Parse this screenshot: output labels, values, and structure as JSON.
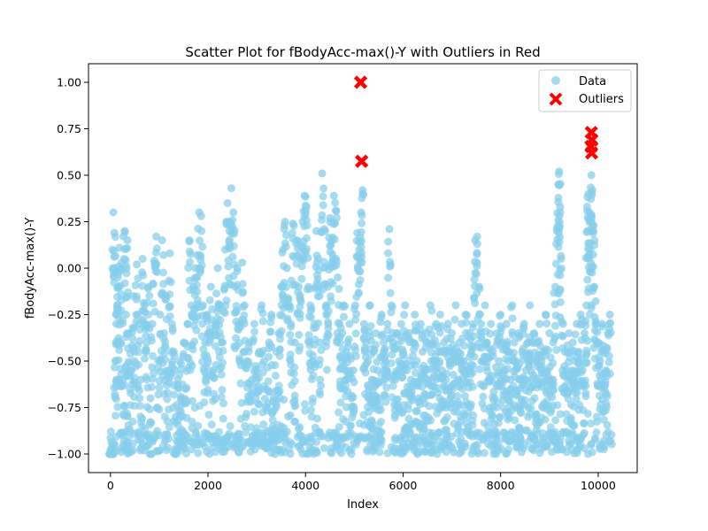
{
  "chart_data": {
    "type": "scatter",
    "title": "Scatter Plot for fBodyAcc-max()-Y with Outliers in Red",
    "xlabel": "Index",
    "ylabel": "fBodyAcc-max()-Y",
    "xlim": [
      -450,
      10800
    ],
    "ylim": [
      -1.1,
      1.1
    ],
    "x_ticks": [
      0,
      2000,
      4000,
      6000,
      8000,
      10000
    ],
    "x_tick_labels": [
      "0",
      "2000",
      "4000",
      "6000",
      "8000",
      "10000"
    ],
    "y_ticks": [
      -1.0,
      -0.75,
      -0.5,
      -0.25,
      0.0,
      0.25,
      0.5,
      0.75,
      1.0
    ],
    "y_tick_labels": [
      "−1.00",
      "−0.75",
      "−0.50",
      "−0.25",
      "0.00",
      "0.25",
      "0.50",
      "0.75",
      "1.00"
    ],
    "grid": false,
    "legend_position": "top-right",
    "series": [
      {
        "name": "Data",
        "color": "#87ceeb",
        "marker": "circle",
        "points": [
          [
            0,
            -0.98
          ],
          [
            20,
            -0.97
          ],
          [
            40,
            -0.95
          ],
          [
            60,
            0.3
          ],
          [
            80,
            0.19
          ],
          [
            100,
            -0.5
          ],
          [
            120,
            -0.3
          ],
          [
            140,
            -0.2
          ],
          [
            160,
            -0.1
          ],
          [
            180,
            0.11
          ],
          [
            200,
            -0.4
          ],
          [
            230,
            0.03
          ],
          [
            260,
            -0.6
          ],
          [
            290,
            0.2
          ],
          [
            320,
            -0.25
          ],
          [
            350,
            0.15
          ],
          [
            380,
            -0.35
          ],
          [
            420,
            -0.55
          ],
          [
            460,
            -0.15
          ],
          [
            500,
            -0.45
          ],
          [
            540,
            0.02
          ],
          [
            580,
            -0.3
          ],
          [
            620,
            -0.6
          ],
          [
            660,
            0.05
          ],
          [
            700,
            -0.2
          ],
          [
            740,
            -0.4
          ],
          [
            780,
            -0.1
          ],
          [
            820,
            -0.7
          ],
          [
            860,
            -0.3
          ],
          [
            900,
            0.04
          ],
          [
            940,
            0.17
          ],
          [
            980,
            -0.5
          ],
          [
            1020,
            -0.25
          ],
          [
            1060,
            0.15
          ],
          [
            1100,
            -0.35
          ],
          [
            1140,
            -0.15
          ],
          [
            1180,
            -0.55
          ],
          [
            1220,
            0.08
          ],
          [
            1260,
            -0.3
          ],
          [
            1300,
            -0.45
          ],
          [
            1340,
            -0.8
          ],
          [
            1380,
            -0.6
          ],
          [
            1420,
            -0.5
          ],
          [
            1460,
            -0.7
          ],
          [
            1500,
            -0.4
          ],
          [
            1540,
            -0.65
          ],
          [
            1580,
            -0.3
          ],
          [
            1620,
            0.15
          ],
          [
            1660,
            -0.2
          ],
          [
            1700,
            -0.1
          ],
          [
            1740,
            0.0
          ],
          [
            1780,
            0.07
          ],
          [
            1820,
            0.3
          ],
          [
            1860,
            0.28
          ],
          [
            1900,
            -0.2
          ],
          [
            1940,
            -0.4
          ],
          [
            1980,
            -0.25
          ],
          [
            2020,
            -0.35
          ],
          [
            2060,
            -0.1
          ],
          [
            2100,
            -0.55
          ],
          [
            2150,
            -0.3
          ],
          [
            2200,
            0.0
          ],
          [
            2250,
            -0.2
          ],
          [
            2300,
            -0.4
          ],
          [
            2350,
            0.1
          ],
          [
            2400,
            0.35
          ],
          [
            2440,
            0.2
          ],
          [
            2480,
            0.43
          ],
          [
            2520,
            0.3
          ],
          [
            2560,
            -0.1
          ],
          [
            2600,
            0.0
          ],
          [
            2650,
            -0.3
          ],
          [
            2700,
            0.03
          ],
          [
            2750,
            -0.2
          ],
          [
            2800,
            -0.5
          ],
          [
            2850,
            -0.4
          ],
          [
            2900,
            -0.6
          ],
          [
            2950,
            -0.3
          ],
          [
            3000,
            -0.55
          ],
          [
            3050,
            -0.45
          ],
          [
            3100,
            -0.2
          ],
          [
            3150,
            -0.5
          ],
          [
            3200,
            -0.65
          ],
          [
            3250,
            -0.4
          ],
          [
            3300,
            -0.25
          ],
          [
            3350,
            -0.7
          ],
          [
            3400,
            -0.45
          ],
          [
            3450,
            -0.35
          ],
          [
            3500,
            -0.1
          ],
          [
            3540,
            0.1
          ],
          [
            3580,
            0.25
          ],
          [
            3620,
            0.0
          ],
          [
            3660,
            -0.2
          ],
          [
            3700,
            -0.3
          ],
          [
            3740,
            0.24
          ],
          [
            3780,
            -0.4
          ],
          [
            3820,
            0.15
          ],
          [
            3860,
            -0.1
          ],
          [
            3900,
            0.05
          ],
          [
            3940,
            0.25
          ],
          [
            3980,
            0.39
          ],
          [
            4020,
            0.33
          ],
          [
            4060,
            -0.1
          ],
          [
            4100,
            -0.2
          ],
          [
            4140,
            -0.5
          ],
          [
            4180,
            -0.3
          ],
          [
            4220,
            0.2
          ],
          [
            4260,
            0.05
          ],
          [
            4300,
            -0.4
          ],
          [
            4340,
            0.51
          ],
          [
            4380,
            0.21
          ],
          [
            4420,
            -0.2
          ],
          [
            4460,
            -0.1
          ],
          [
            4500,
            0.27
          ],
          [
            4540,
            0.15
          ],
          [
            4580,
            0.39
          ],
          [
            4620,
            0.31
          ],
          [
            4660,
            -0.05
          ],
          [
            4700,
            -0.3
          ],
          [
            4740,
            -0.5
          ],
          [
            4780,
            -0.2
          ],
          [
            4820,
            -0.6
          ],
          [
            4860,
            -0.4
          ],
          [
            4900,
            -0.3
          ],
          [
            4940,
            -0.7
          ],
          [
            4980,
            -0.55
          ],
          [
            5020,
            -0.2
          ],
          [
            5060,
            0.19
          ],
          [
            5100,
            0.14
          ],
          [
            5140,
            0.3
          ],
          [
            5170,
            0.42
          ],
          [
            5200,
            -0.3
          ],
          [
            5240,
            -0.4
          ],
          [
            5280,
            -0.5
          ],
          [
            5320,
            -0.2
          ],
          [
            5360,
            -0.6
          ],
          [
            5400,
            -0.45
          ],
          [
            5440,
            -0.35
          ],
          [
            5480,
            -0.55
          ],
          [
            5520,
            -0.7
          ],
          [
            5560,
            -0.25
          ],
          [
            5600,
            -0.4
          ],
          [
            5640,
            -0.5
          ],
          [
            5680,
            -0.3
          ],
          [
            5720,
            0.21
          ],
          [
            5760,
            -0.2
          ],
          [
            5800,
            -0.4
          ],
          [
            5840,
            -0.6
          ],
          [
            5880,
            -0.35
          ],
          [
            5920,
            -0.5
          ],
          [
            5960,
            -0.3
          ],
          [
            6000,
            -0.45
          ],
          [
            6040,
            -0.2
          ],
          [
            6080,
            -0.55
          ],
          [
            6120,
            -0.35
          ],
          [
            6160,
            -0.6
          ],
          [
            6200,
            -0.4
          ],
          [
            6240,
            -0.25
          ],
          [
            6280,
            -0.5
          ],
          [
            6320,
            -0.7
          ],
          [
            6360,
            -0.3
          ],
          [
            6400,
            -0.45
          ],
          [
            6440,
            -0.55
          ],
          [
            6480,
            -0.35
          ],
          [
            6520,
            -0.6
          ],
          [
            6560,
            -0.2
          ],
          [
            6600,
            -0.4
          ],
          [
            6640,
            -0.5
          ],
          [
            6680,
            -0.3
          ],
          [
            6720,
            -0.45
          ],
          [
            6760,
            -0.25
          ],
          [
            6800,
            -0.55
          ],
          [
            6840,
            -0.4
          ],
          [
            6880,
            -0.6
          ],
          [
            6920,
            -0.3
          ],
          [
            6960,
            -0.5
          ],
          [
            7000,
            -0.35
          ],
          [
            7040,
            -0.45
          ],
          [
            7080,
            -0.2
          ],
          [
            7120,
            -0.6
          ],
          [
            7160,
            -0.4
          ],
          [
            7200,
            -0.3
          ],
          [
            7240,
            -0.5
          ],
          [
            7280,
            -0.25
          ],
          [
            7320,
            -0.55
          ],
          [
            7360,
            -0.35
          ],
          [
            7400,
            -0.45
          ],
          [
            7440,
            -0.3
          ],
          [
            7480,
            0.15
          ],
          [
            7520,
            0.17
          ],
          [
            7560,
            -0.1
          ],
          [
            7600,
            -0.3
          ],
          [
            7640,
            -0.5
          ],
          [
            7680,
            -0.2
          ],
          [
            7720,
            -0.4
          ],
          [
            7760,
            -0.6
          ],
          [
            7800,
            -0.3
          ],
          [
            7840,
            -0.45
          ],
          [
            7880,
            -0.7
          ],
          [
            7920,
            -0.35
          ],
          [
            7960,
            -0.5
          ],
          [
            8000,
            -0.25
          ],
          [
            8040,
            -0.4
          ],
          [
            8080,
            -0.55
          ],
          [
            8120,
            -0.3
          ],
          [
            8160,
            -0.45
          ],
          [
            8200,
            -0.6
          ],
          [
            8240,
            -0.2
          ],
          [
            8280,
            -0.4
          ],
          [
            8320,
            -0.5
          ],
          [
            8360,
            -0.35
          ],
          [
            8400,
            -0.6
          ],
          [
            8440,
            -0.45
          ],
          [
            8480,
            -0.3
          ],
          [
            8520,
            -0.55
          ],
          [
            8560,
            -0.4
          ],
          [
            8600,
            -0.2
          ],
          [
            8640,
            -0.5
          ],
          [
            8680,
            -0.35
          ],
          [
            8720,
            -0.6
          ],
          [
            8760,
            -0.4
          ],
          [
            8800,
            -0.3
          ],
          [
            8840,
            -0.5
          ],
          [
            8880,
            -0.45
          ],
          [
            8920,
            -0.25
          ],
          [
            8960,
            -0.55
          ],
          [
            9000,
            -0.35
          ],
          [
            9040,
            -0.6
          ],
          [
            9080,
            -0.4
          ],
          [
            9120,
            -0.1
          ],
          [
            9160,
            0.2
          ],
          [
            9180,
            0.45
          ],
          [
            9200,
            0.52
          ],
          [
            9220,
            0.33
          ],
          [
            9240,
            0.05
          ],
          [
            9280,
            -0.3
          ],
          [
            9320,
            -0.45
          ],
          [
            9360,
            -0.55
          ],
          [
            9400,
            -0.35
          ],
          [
            9440,
            -0.6
          ],
          [
            9480,
            -0.4
          ],
          [
            9520,
            -0.5
          ],
          [
            9560,
            -0.3
          ],
          [
            9600,
            -0.45
          ],
          [
            9640,
            -0.25
          ],
          [
            9680,
            -0.55
          ],
          [
            9720,
            -0.35
          ],
          [
            9760,
            -0.2
          ],
          [
            9780,
            0.2
          ],
          [
            9800,
            0.4
          ],
          [
            9820,
            0.3
          ],
          [
            9840,
            0.1
          ],
          [
            9860,
            0.5
          ],
          [
            9880,
            0.42
          ],
          [
            9900,
            0.2
          ],
          [
            9920,
            -0.1
          ],
          [
            9960,
            -0.3
          ],
          [
            10000,
            -0.4
          ],
          [
            10040,
            -0.5
          ],
          [
            10080,
            -0.3
          ],
          [
            10120,
            -0.45
          ],
          [
            10160,
            -0.55
          ],
          [
            10200,
            -0.35
          ],
          [
            10240,
            -0.25
          ]
        ]
      },
      {
        "name": "Outliers",
        "color": "#ff0000",
        "marker": "x",
        "points": [
          [
            5130,
            1.0
          ],
          [
            5150,
            0.575
          ],
          [
            9860,
            0.73
          ],
          [
            9870,
            0.69
          ],
          [
            9855,
            0.655
          ],
          [
            9865,
            0.62
          ]
        ]
      }
    ],
    "legend": {
      "entries": [
        "Data",
        "Outliers"
      ]
    }
  }
}
